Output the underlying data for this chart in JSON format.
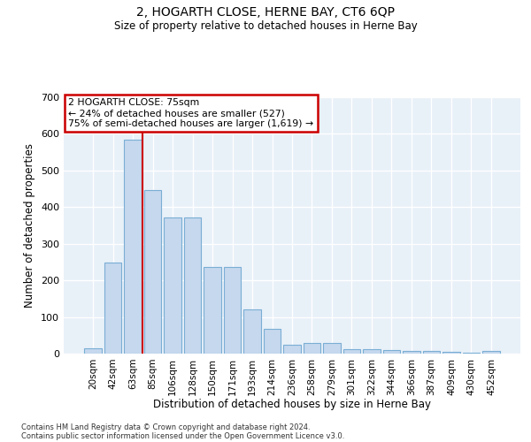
{
  "title": "2, HOGARTH CLOSE, HERNE BAY, CT6 6QP",
  "subtitle": "Size of property relative to detached houses in Herne Bay",
  "xlabel": "Distribution of detached houses by size in Herne Bay",
  "ylabel": "Number of detached properties",
  "categories": [
    "20sqm",
    "42sqm",
    "63sqm",
    "85sqm",
    "106sqm",
    "128sqm",
    "150sqm",
    "171sqm",
    "193sqm",
    "214sqm",
    "236sqm",
    "258sqm",
    "279sqm",
    "301sqm",
    "322sqm",
    "344sqm",
    "366sqm",
    "387sqm",
    "409sqm",
    "430sqm",
    "452sqm"
  ],
  "values": [
    15,
    248,
    585,
    447,
    372,
    372,
    237,
    237,
    120,
    68,
    25,
    30,
    30,
    13,
    13,
    10,
    8,
    8,
    5,
    3,
    7
  ],
  "bar_color": "#c5d8ee",
  "bar_edge_color": "#7aaed4",
  "vline_color": "#cc0000",
  "annotation_text": "2 HOGARTH CLOSE: 75sqm\n← 24% of detached houses are smaller (527)\n75% of semi-detached houses are larger (1,619) →",
  "annotation_box_color": "#ffffff",
  "annotation_box_edge": "#cc0000",
  "ylim": [
    0,
    700
  ],
  "yticks": [
    0,
    100,
    200,
    300,
    400,
    500,
    600,
    700
  ],
  "bg_color": "#e8f0f8",
  "footer1": "Contains HM Land Registry data © Crown copyright and database right 2024.",
  "footer2": "Contains public sector information licensed under the Open Government Licence v3.0."
}
